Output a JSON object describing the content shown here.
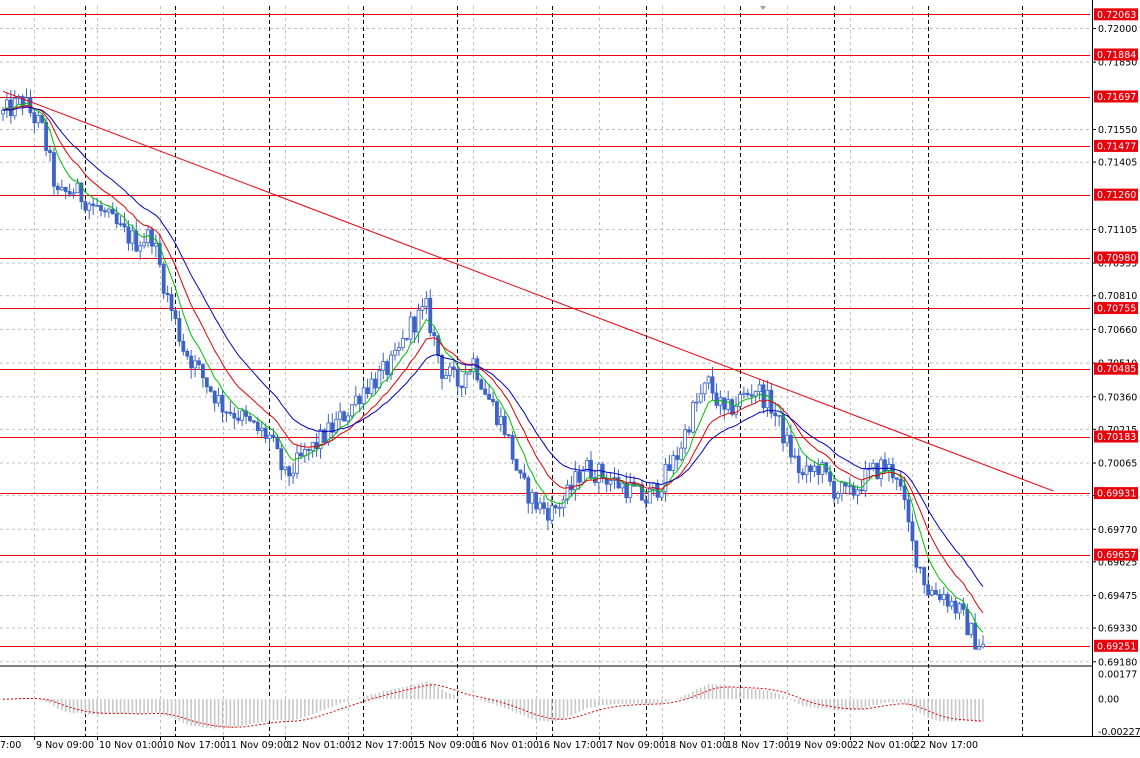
{
  "chart_data": {
    "type": "candlestick",
    "instrument_note": "",
    "colors": {
      "background": "#ffffff",
      "grid": "#c0c0c0",
      "candle_up": "#3c63c8",
      "candle_down": "#3c63c8",
      "level_line": "#e8000b",
      "level_label_bg": "#e8000b",
      "ma_fast": "#00c000",
      "ma_mid": "#e00000",
      "ma_slow": "#0000c0",
      "trendline": "#e8000b",
      "osc_hist": "#c8c8c8",
      "osc_signal": "#e00000"
    },
    "price_range": [
      0.6917,
      0.721
    ],
    "price_ticks": [
      "0.72000",
      "0.71850",
      "0.71550",
      "0.71405",
      "0.71105",
      "0.70955",
      "0.70810",
      "0.70660",
      "0.70510",
      "0.70360",
      "0.70215",
      "0.70065",
      "0.69920",
      "0.69770",
      "0.69625",
      "0.69475",
      "0.69330",
      "0.69180"
    ],
    "levels": [
      {
        "label": "0.72063",
        "value": 0.72063
      },
      {
        "label": "0.71884",
        "value": 0.71884
      },
      {
        "label": "0.71697",
        "value": 0.71697
      },
      {
        "label": "0.71477",
        "value": 0.71477
      },
      {
        "label": "0.71260",
        "value": 0.7126
      },
      {
        "label": "0.70980",
        "value": 0.7098
      },
      {
        "label": "0.70755",
        "value": 0.70755
      },
      {
        "label": "0.70485",
        "value": 0.70485
      },
      {
        "label": "0.70183",
        "value": 0.70183
      },
      {
        "label": "0.69931",
        "value": 0.69931
      },
      {
        "label": "0.69657",
        "value": 0.69657
      },
      {
        "label": "0.69251",
        "value": 0.69251
      }
    ],
    "trendline": {
      "from": {
        "bar": 0,
        "price": 0.7172
      },
      "to": {
        "bar": 268,
        "price": 0.6994
      }
    },
    "time_labels": [
      {
        "label": "7:00",
        "bar": -3
      },
      {
        "label": "9 Nov 09:00",
        "bar": 8
      },
      {
        "label": "10 Nov 01:00",
        "bar": 24
      },
      {
        "label": "10 Nov 17:00",
        "bar": 40
      },
      {
        "label": "11 Nov 09:00",
        "bar": 56
      },
      {
        "label": "12 Nov 01:00",
        "bar": 72
      },
      {
        "label": "12 Nov 17:00",
        "bar": 88
      },
      {
        "label": "15 Nov 09:00",
        "bar": 104
      },
      {
        "label": "16 Nov 01:00",
        "bar": 120
      },
      {
        "label": "16 Nov 17:00",
        "bar": 136
      },
      {
        "label": "17 Nov 09:00",
        "bar": 152
      },
      {
        "label": "18 Nov 01:00",
        "bar": 168
      },
      {
        "label": "18 Nov 17:00",
        "bar": 184
      },
      {
        "label": "19 Nov 09:00",
        "bar": 200
      },
      {
        "label": "22 Nov 01:00",
        "bar": 216
      },
      {
        "label": "22 Nov 17:00",
        "bar": 232
      }
    ],
    "vertical_grid_bars": [
      -1,
      22,
      46,
      70,
      94,
      118,
      142,
      166,
      190,
      214,
      238,
      262
    ],
    "price_anchors": [
      [
        0,
        0.7162
      ],
      [
        5,
        0.7168
      ],
      [
        10,
        0.7155
      ],
      [
        14,
        0.7125
      ],
      [
        18,
        0.7128
      ],
      [
        24,
        0.712
      ],
      [
        30,
        0.711
      ],
      [
        34,
        0.7105
      ],
      [
        38,
        0.7108
      ],
      [
        42,
        0.708
      ],
      [
        46,
        0.7058
      ],
      [
        52,
        0.7042
      ],
      [
        56,
        0.7032
      ],
      [
        60,
        0.7028
      ],
      [
        64,
        0.7022
      ],
      [
        68,
        0.7018
      ],
      [
        72,
        0.7
      ],
      [
        76,
        0.7008
      ],
      [
        80,
        0.7015
      ],
      [
        84,
        0.7022
      ],
      [
        88,
        0.703
      ],
      [
        92,
        0.704
      ],
      [
        96,
        0.7045
      ],
      [
        100,
        0.7052
      ],
      [
        104,
        0.7068
      ],
      [
        108,
        0.7075
      ],
      [
        112,
        0.7048
      ],
      [
        116,
        0.7042
      ],
      [
        120,
        0.7052
      ],
      [
        124,
        0.7035
      ],
      [
        128,
        0.7022
      ],
      [
        132,
        0.6998
      ],
      [
        136,
        0.6988
      ],
      [
        140,
        0.6985
      ],
      [
        144,
        0.6992
      ],
      [
        148,
        0.7005
      ],
      [
        152,
        0.7002
      ],
      [
        156,
        0.6998
      ],
      [
        160,
        0.6995
      ],
      [
        164,
        0.699
      ],
      [
        168,
        0.6998
      ],
      [
        172,
        0.701
      ],
      [
        176,
        0.703
      ],
      [
        180,
        0.7042
      ],
      [
        184,
        0.7028
      ],
      [
        188,
        0.7035
      ],
      [
        192,
        0.704
      ],
      [
        196,
        0.7032
      ],
      [
        200,
        0.7015
      ],
      [
        204,
        0.7
      ],
      [
        208,
        0.7005
      ],
      [
        212,
        0.6995
      ],
      [
        216,
        0.6992
      ],
      [
        220,
        0.7
      ],
      [
        224,
        0.7005
      ],
      [
        228,
        0.7002
      ],
      [
        232,
        0.697
      ],
      [
        236,
        0.695
      ],
      [
        240,
        0.6948
      ],
      [
        244,
        0.694
      ],
      [
        248,
        0.6928
      ],
      [
        250,
        0.6925
      ]
    ],
    "oscillator": {
      "ticks": [
        "0.00177",
        "0.00",
        "-0.002277"
      ],
      "range": [
        -0.0026,
        0.0022
      ]
    }
  }
}
